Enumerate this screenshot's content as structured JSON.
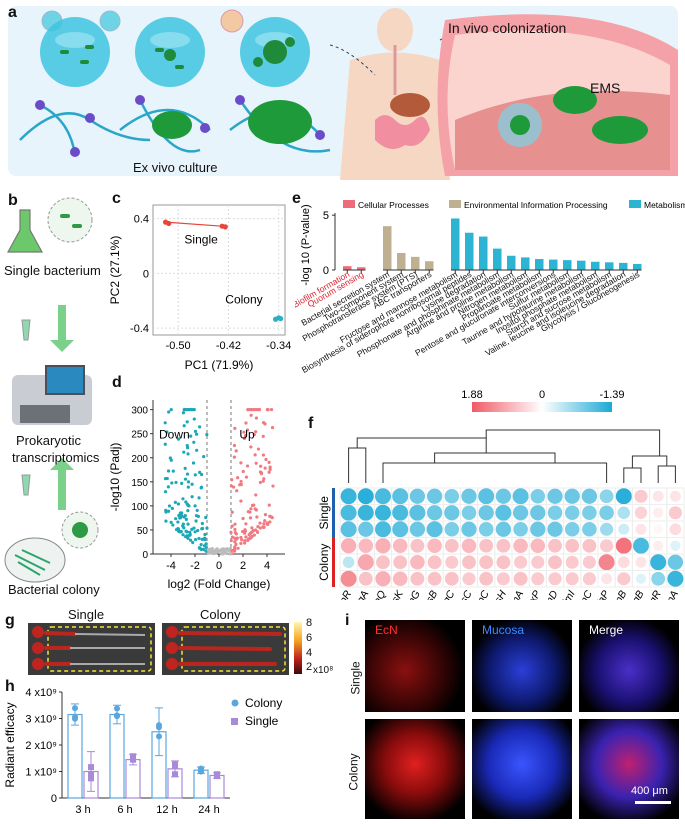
{
  "panel_letters": [
    "a",
    "b",
    "c",
    "d",
    "e",
    "f",
    "g",
    "h",
    "i"
  ],
  "panel_a": {
    "ex_vivo_label": "Ex vivo culture",
    "in_vivo_label": "In vivo colonization",
    "ems_label": "EMS"
  },
  "panel_b": {
    "single_label": "Single bacterium",
    "transcriptomics_label_1": "Prokaryotic",
    "transcriptomics_label_2": "transcriptomics",
    "colony_label": "Bacterial colony"
  },
  "chart_data": [
    {
      "panel": "c",
      "type": "scatter",
      "xlabel": "PC1 (71.9%)",
      "ylabel": "PC2 (27.1%)",
      "xticks": [
        "-0.50",
        "-0.42",
        "-0.34"
      ],
      "yticks": [
        "0.4",
        "0",
        "-0.4"
      ],
      "xlim": [
        -0.54,
        -0.33
      ],
      "ylim": [
        -0.45,
        0.5
      ],
      "series": [
        {
          "name": "Single",
          "color": "#e8453c",
          "points": [
            [
              -0.52,
              0.375
            ],
            [
              -0.515,
              0.365
            ],
            [
              -0.43,
              0.345
            ],
            [
              -0.425,
              0.34
            ]
          ]
        },
        {
          "name": "Colony",
          "color": "#2ab0c5",
          "points": [
            [
              -0.345,
              -0.335
            ],
            [
              -0.34,
              -0.325
            ],
            [
              -0.337,
              -0.33
            ]
          ]
        }
      ]
    },
    {
      "panel": "d",
      "type": "scatter",
      "xlabel": "log2 (Fold Change)",
      "ylabel": "-log10 (Padj)",
      "xticks": [
        "-4",
        "-2",
        "0",
        "2",
        "4"
      ],
      "yticks": [
        "0",
        "50",
        "100",
        "150",
        "200",
        "250",
        "300"
      ],
      "xlim": [
        -5.5,
        5.5
      ],
      "ylim": [
        0,
        320
      ],
      "down_label": "Down",
      "up_label": "Up",
      "colors": {
        "down": "#1aa8b8",
        "up": "#f07a80",
        "ns": "#bbbbbb"
      }
    },
    {
      "panel": "e",
      "type": "bar",
      "ylabel": "-log 10 (P-value)",
      "yticks": [
        "0",
        "5"
      ],
      "ylim": [
        0,
        5.2
      ],
      "legend": [
        {
          "name": "Cellular Processes",
          "color": "#ee6b7a"
        },
        {
          "name": "Environmental Information Processing",
          "color": "#bfb091"
        },
        {
          "name": "Metabolism",
          "color": "#2db4d2"
        }
      ],
      "groups": [
        {
          "color": "#ee6b7a",
          "categories": [
            "Biofilm formation",
            "Quorum sensing"
          ],
          "values": [
            0.35,
            0.25
          ],
          "label_color": "#e0202f"
        },
        {
          "color": "#bfb091",
          "categories": [
            "Bacterial secretion system",
            "Two-component system",
            "Phosphotransferase system (PTS)",
            "ABC transporters"
          ],
          "values": [
            4.0,
            1.55,
            1.2,
            0.8
          ],
          "label_color": "#111111"
        },
        {
          "color": "#2db4d2",
          "categories": [
            "Fructose and mannose metabolism",
            "Biosynthesis of siderophore nonribosomal peptides",
            "Lysine degradation",
            "Phosphonate and phosphinate metabolism",
            "Arginine and proline metabolism",
            "Nitrogen metabolism",
            "Propanoate metabolism",
            "Pentose and glucuronate interconversions",
            "Sulfur metabolism",
            "Taurine and hypotaurine metabolism",
            "Inositol phosphate metabolism",
            "Starch and sucrose metabolism",
            "Valine, leucine and isoleucine degradation",
            "Glycolysis / Gluconeogenesis"
          ],
          "values": [
            4.7,
            3.4,
            3.05,
            1.95,
            1.3,
            1.15,
            1.0,
            0.95,
            0.9,
            0.85,
            0.75,
            0.7,
            0.65,
            0.55
          ],
          "label_color": "#111111"
        }
      ]
    },
    {
      "panel": "f",
      "type": "heatmap",
      "scale_max": "1.88",
      "scale_mid": "0",
      "scale_min": "-1.39",
      "row_groups": [
        "Single",
        "Colony"
      ],
      "columns": [
        "ecpR",
        "csgA",
        "rfaQ",
        "tssK",
        "fimG",
        "tssB",
        "csgC",
        "tssC",
        "ecpC",
        "tssH",
        "fimA",
        "lpxP",
        "fimD",
        "fimI",
        "fimC",
        "rfaP",
        "ecpB",
        "csgB",
        "ycgR",
        "ecpA"
      ],
      "rows": [
        [
          -1.2,
          -1.3,
          -1.1,
          -1.0,
          -0.9,
          -0.9,
          -0.8,
          -0.9,
          -1.0,
          -0.9,
          -1.0,
          -0.8,
          -0.9,
          -0.9,
          -0.9,
          -0.7,
          -1.3,
          0.6,
          0.3,
          0.3
        ],
        [
          -1.1,
          -1.2,
          -1.2,
          -1.1,
          -1.0,
          -0.9,
          -0.9,
          -0.8,
          -0.9,
          -1.0,
          -0.9,
          -0.9,
          -0.8,
          -0.8,
          -0.8,
          -0.8,
          -0.5,
          0.5,
          0.2,
          0.6
        ],
        [
          -1.0,
          -0.9,
          -1.1,
          -1.0,
          -0.9,
          -1.0,
          -0.8,
          -0.9,
          -0.8,
          -0.9,
          -0.8,
          -0.9,
          -0.9,
          -0.8,
          -0.8,
          -0.6,
          -0.3,
          0.3,
          0.1,
          0.4
        ],
        [
          0.9,
          0.8,
          0.9,
          0.8,
          0.7,
          0.8,
          0.7,
          0.8,
          0.7,
          0.7,
          0.8,
          0.8,
          0.7,
          0.7,
          0.7,
          0.6,
          1.6,
          -1.1,
          0.2,
          -0.2
        ],
        [
          -0.4,
          1.0,
          0.7,
          0.7,
          0.8,
          0.7,
          0.6,
          0.7,
          0.7,
          0.7,
          0.6,
          0.6,
          0.7,
          0.6,
          0.6,
          1.4,
          0.4,
          0.3,
          -1.2,
          -0.9
        ],
        [
          1.3,
          0.7,
          0.9,
          0.8,
          0.7,
          0.7,
          0.7,
          0.6,
          0.7,
          0.6,
          0.7,
          0.6,
          0.6,
          0.6,
          0.6,
          0.3,
          0.6,
          -0.2,
          -0.7,
          -1.2
        ]
      ]
    },
    {
      "panel": "h",
      "type": "bar",
      "ylabel": "Radiant efficacy",
      "categories": [
        "3 h",
        "6 h",
        "12 h",
        "24 h"
      ],
      "yticks": [
        "0",
        "1 x10⁹",
        "2 x10⁹",
        "3 x10⁹",
        "4 x10⁹"
      ],
      "ylim": [
        0,
        4
      ],
      "series": [
        {
          "name": "Colony",
          "color": "#5aa7de",
          "values": [
            3.15,
            3.15,
            2.5,
            1.05
          ],
          "errors": [
            0.4,
            0.35,
            0.9,
            0.12
          ]
        },
        {
          "name": "Single",
          "color": "#a98ad8",
          "values": [
            1.0,
            1.45,
            1.1,
            0.85
          ],
          "errors": [
            0.75,
            0.2,
            0.3,
            0.1
          ]
        }
      ]
    }
  ],
  "panel_g": {
    "single_label": "Single",
    "colony_label": "Colony",
    "colorbar_ticks": [
      "8",
      "6",
      "4",
      "2"
    ],
    "colorbar_unit": "x10⁸"
  },
  "panel_i": {
    "col_labels": [
      "EcN",
      "Mucosa",
      "Merge"
    ],
    "row_labels": [
      "Single",
      "Colony"
    ],
    "scale_bar": "400 μm",
    "colors": {
      "ecn": "#ff3030",
      "mucosa": "#2e6bff"
    }
  }
}
